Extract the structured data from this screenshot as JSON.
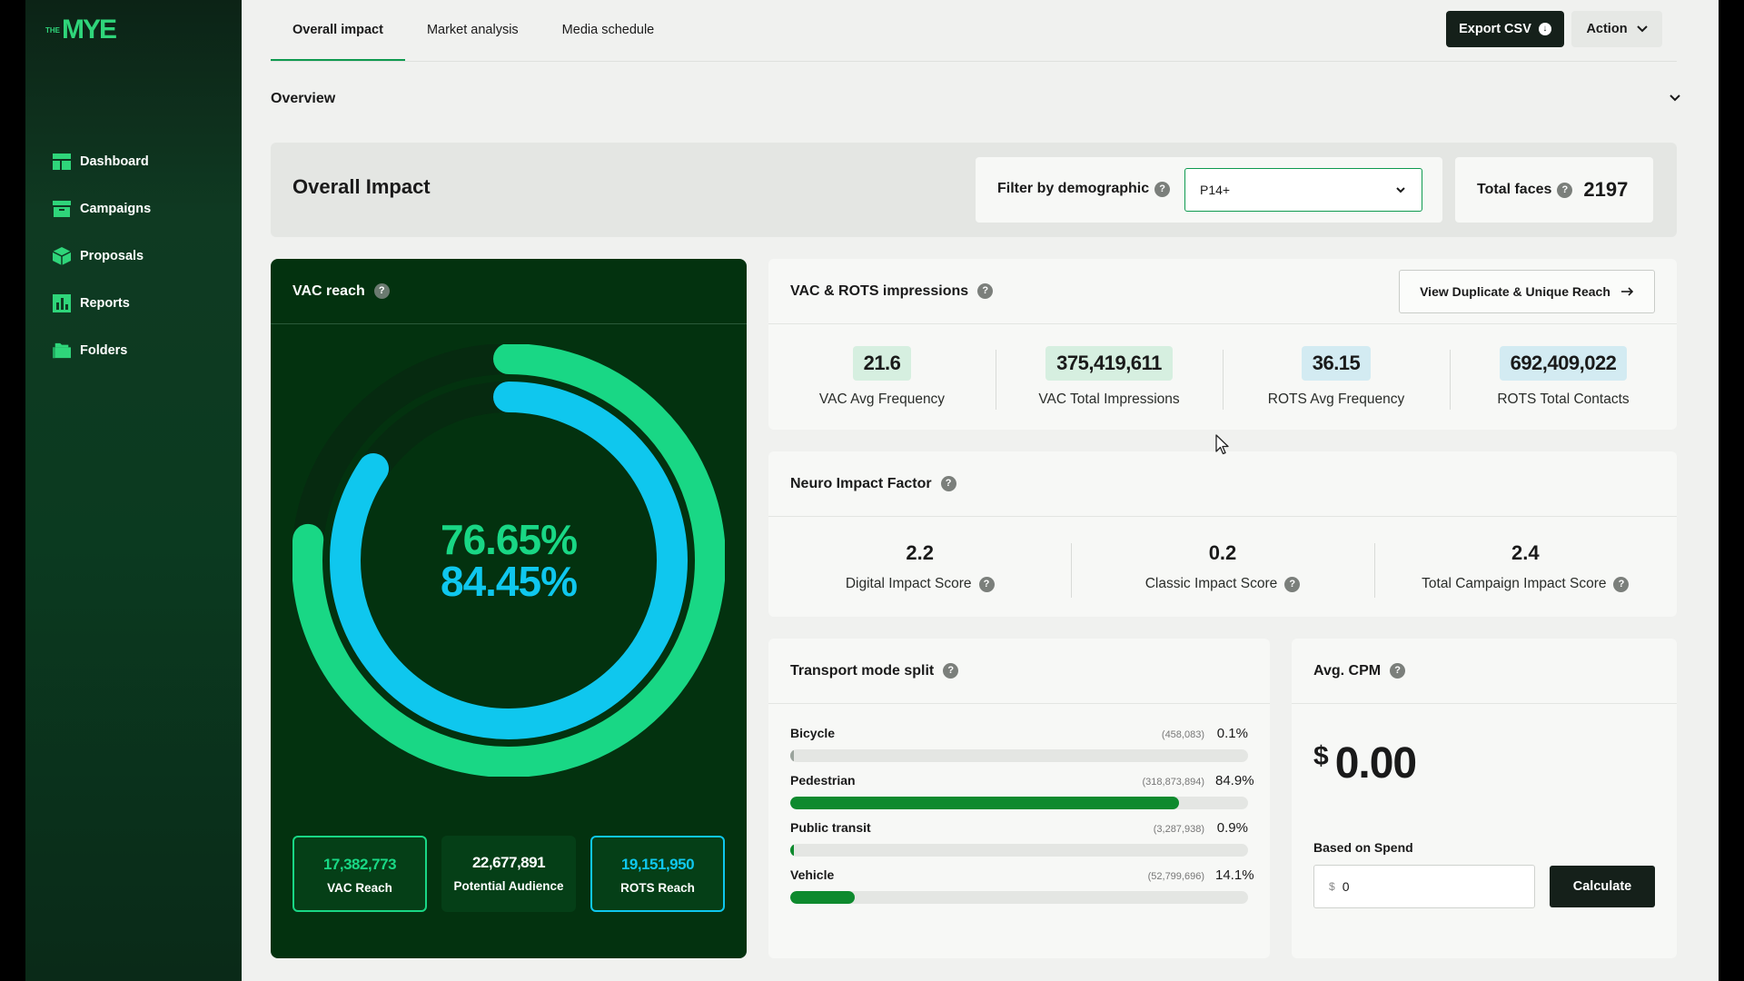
{
  "brand": {
    "logo_text": "MYE",
    "logo_prefix": "THE"
  },
  "sidebar": {
    "items": [
      {
        "label": "Dashboard",
        "icon": "dashboard-icon"
      },
      {
        "label": "Campaigns",
        "icon": "campaigns-icon"
      },
      {
        "label": "Proposals",
        "icon": "proposals-icon"
      },
      {
        "label": "Reports",
        "icon": "reports-icon"
      },
      {
        "label": "Folders",
        "icon": "folders-icon"
      }
    ]
  },
  "tabs": [
    {
      "label": "Overall impact",
      "active": true
    },
    {
      "label": "Market analysis",
      "active": false
    },
    {
      "label": "Media schedule",
      "active": false
    }
  ],
  "toolbar": {
    "export_label": "Export CSV",
    "action_label": "Action"
  },
  "overview": {
    "title": "Overview"
  },
  "impact": {
    "title": "Overall Impact",
    "filter_label": "Filter by demographic",
    "filter_value": "P14+",
    "total_faces_label": "Total faces",
    "total_faces_value": "2197"
  },
  "vac_reach": {
    "title": "VAC reach",
    "outer_pct_text": "76.65%",
    "inner_pct_text": "84.45%",
    "outer_fraction": 0.7665,
    "inner_fraction": 0.8445,
    "tiles": [
      {
        "value": "17,382,773",
        "label": "VAC Reach"
      },
      {
        "value": "22,677,891",
        "label": "Potential Audience"
      },
      {
        "value": "19,151,950",
        "label": "ROTS Reach"
      }
    ]
  },
  "impressions": {
    "title": "VAC & ROTS impressions",
    "button_label": "View Duplicate & Unique Reach",
    "metrics": [
      {
        "value": "21.6",
        "label": "VAC Avg Frequency"
      },
      {
        "value": "375,419,611",
        "label": "VAC Total Impressions"
      },
      {
        "value": "36.15",
        "label": "ROTS Avg Frequency"
      },
      {
        "value": "692,409,022",
        "label": "ROTS Total Contacts"
      }
    ]
  },
  "neuro": {
    "title": "Neuro Impact Factor",
    "metrics": [
      {
        "value": "2.2",
        "label": "Digital Impact Score"
      },
      {
        "value": "0.2",
        "label": "Classic Impact Score"
      },
      {
        "value": "2.4",
        "label": "Total Campaign Impact Score"
      }
    ]
  },
  "transport": {
    "title": "Transport mode split",
    "rows": [
      {
        "name": "Bicycle",
        "count": "(458,083)",
        "pct": "0.1%",
        "fraction": 0.001
      },
      {
        "name": "Pedestrian",
        "count": "(318,873,894)",
        "pct": "84.9%",
        "fraction": 0.849
      },
      {
        "name": "Public transit",
        "count": "(3,287,938)",
        "pct": "0.9%",
        "fraction": 0.009
      },
      {
        "name": "Vehicle",
        "count": "(52,799,696)",
        "pct": "14.1%",
        "fraction": 0.141
      }
    ]
  },
  "cpm": {
    "title": "Avg. CPM",
    "currency": "$",
    "value": "0.00",
    "spend_label": "Based on Spend",
    "spend_currency": "$",
    "spend_value": "0",
    "calc_label": "Calculate"
  },
  "colors": {
    "green_ring": "#19d785",
    "blue_ring": "#0fc7ee",
    "bar_fill": "#0e8a2e",
    "sidebar_bg": "#0f3a22"
  }
}
